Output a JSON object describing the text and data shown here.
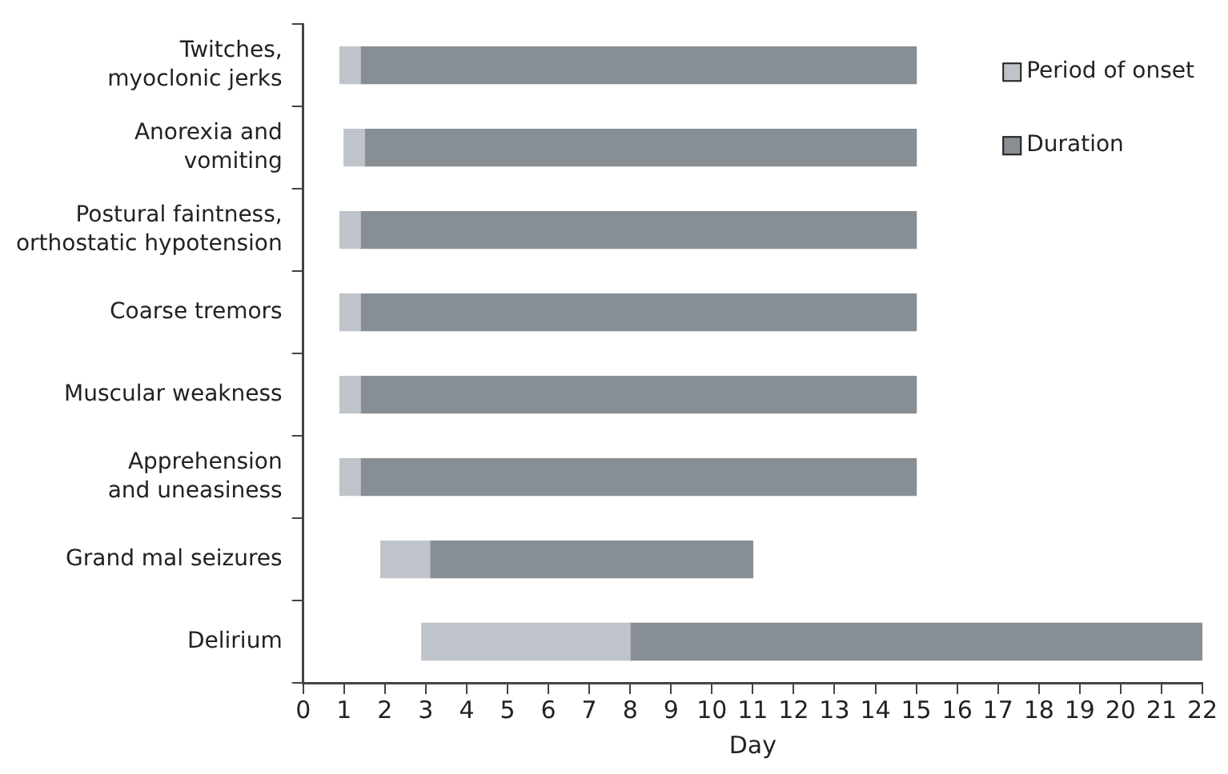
{
  "chart_data": {
    "type": "bar",
    "orientation": "horizontal",
    "xlabel": "Day",
    "categories": [
      "Twitches, myoclonic jerks",
      "Anorexia and vomiting",
      "Postural faintness, orthostatic hypotension",
      "Coarse tremors",
      "Muscular weakness",
      "Apprehension and uneasiness",
      "Grand mal seizures",
      "Delirium"
    ],
    "series": [
      {
        "name": "Period of onset",
        "color": "#bfc4ca",
        "base": [
          0.9,
          1.0,
          0.9,
          0.9,
          0.9,
          0.9,
          1.9,
          2.9
        ],
        "values": [
          0.5,
          0.5,
          0.5,
          0.5,
          0.5,
          0.5,
          1.2,
          5.1
        ]
      },
      {
        "name": "Duration",
        "color": "#878e94",
        "base": [
          1.4,
          1.5,
          1.4,
          1.4,
          1.4,
          1.4,
          3.1,
          8
        ],
        "values": [
          13.6,
          13.5,
          13.6,
          13.6,
          13.6,
          13.6,
          7.9,
          14
        ]
      }
    ],
    "xlim": [
      0,
      22
    ],
    "xticks": [
      0,
      1,
      2,
      3,
      4,
      5,
      6,
      7,
      8,
      9,
      10,
      11,
      12,
      13,
      14,
      15,
      16,
      17,
      18,
      19,
      20,
      21,
      22
    ],
    "legend": "top right"
  }
}
